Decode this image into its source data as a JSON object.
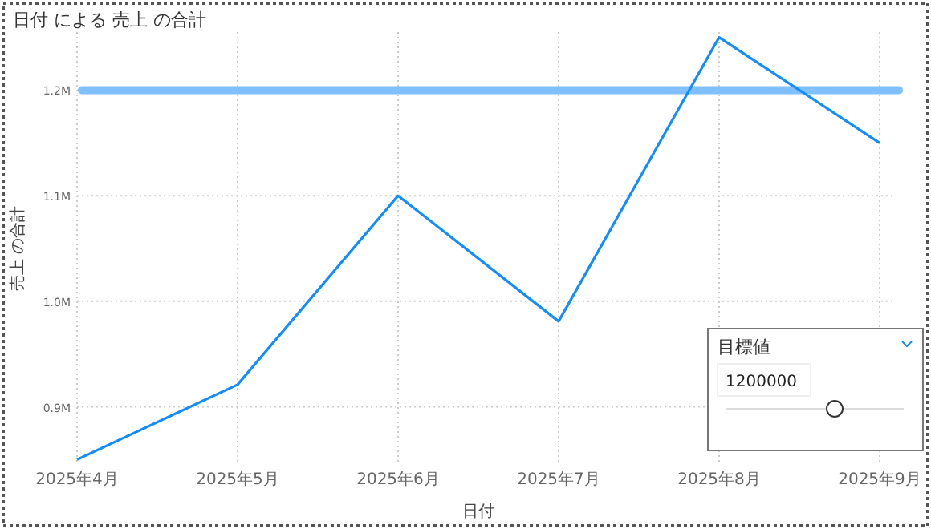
{
  "chart_data": {
    "type": "line",
    "title": "日付 による 売上 の合計",
    "xlabel": "日付",
    "ylabel": "売上 の合計",
    "categories": [
      "2025年4月",
      "2025年5月",
      "2025年6月",
      "2025年7月",
      "2025年8月",
      "2025年9月"
    ],
    "series": [
      {
        "color": "#118dff",
        "values": [
          850000,
          921000,
          1100000,
          981000,
          1250000,
          1150000
        ]
      }
    ],
    "ylim": [
      845000,
      1255000
    ],
    "yticks": [
      {
        "value": 900000,
        "label": "0.9M"
      },
      {
        "value": 1000000,
        "label": "1.0M"
      },
      {
        "value": 1100000,
        "label": "1.1M"
      },
      {
        "value": 1200000,
        "label": "1.2M"
      }
    ],
    "grid": true,
    "ref_lines": [
      {
        "axis": "y",
        "value": 1200000,
        "color": "#80c0ff"
      }
    ],
    "annotations": [
      "目標値",
      "1200000"
    ]
  }
}
